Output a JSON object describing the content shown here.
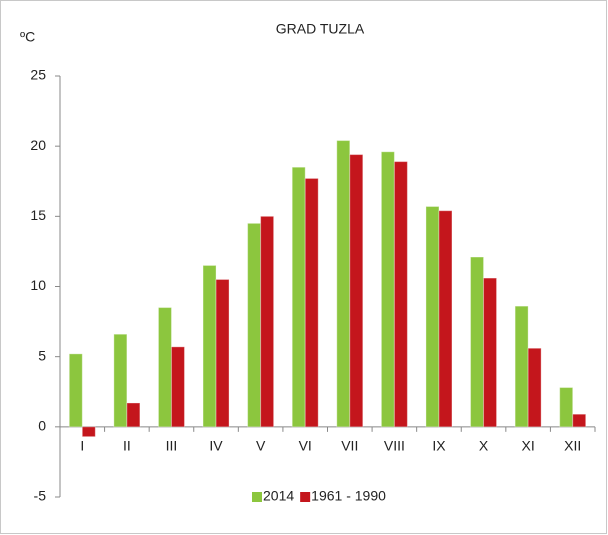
{
  "chart_data": {
    "type": "bar",
    "title": "GRAD TUZLA",
    "y_label": "ºC",
    "categories": [
      "I",
      "II",
      "III",
      "IV",
      "V",
      "VI",
      "VII",
      "VIII",
      "IX",
      "X",
      "XI",
      "XII"
    ],
    "series": [
      {
        "name": "2014",
        "color": "#8cc63e",
        "values": [
          5.2,
          6.6,
          8.5,
          11.5,
          14.5,
          18.5,
          20.4,
          19.6,
          15.7,
          12.1,
          8.6,
          2.8
        ]
      },
      {
        "name": "1961 - 1990",
        "color": "#c4161c",
        "values": [
          -0.7,
          1.7,
          5.7,
          10.5,
          15.0,
          17.7,
          19.4,
          18.9,
          15.4,
          10.6,
          5.6,
          0.9
        ]
      }
    ],
    "ylim": [
      -5,
      25
    ],
    "yticks": [
      -5,
      0,
      5,
      10,
      15,
      20,
      25
    ],
    "grid": false
  }
}
